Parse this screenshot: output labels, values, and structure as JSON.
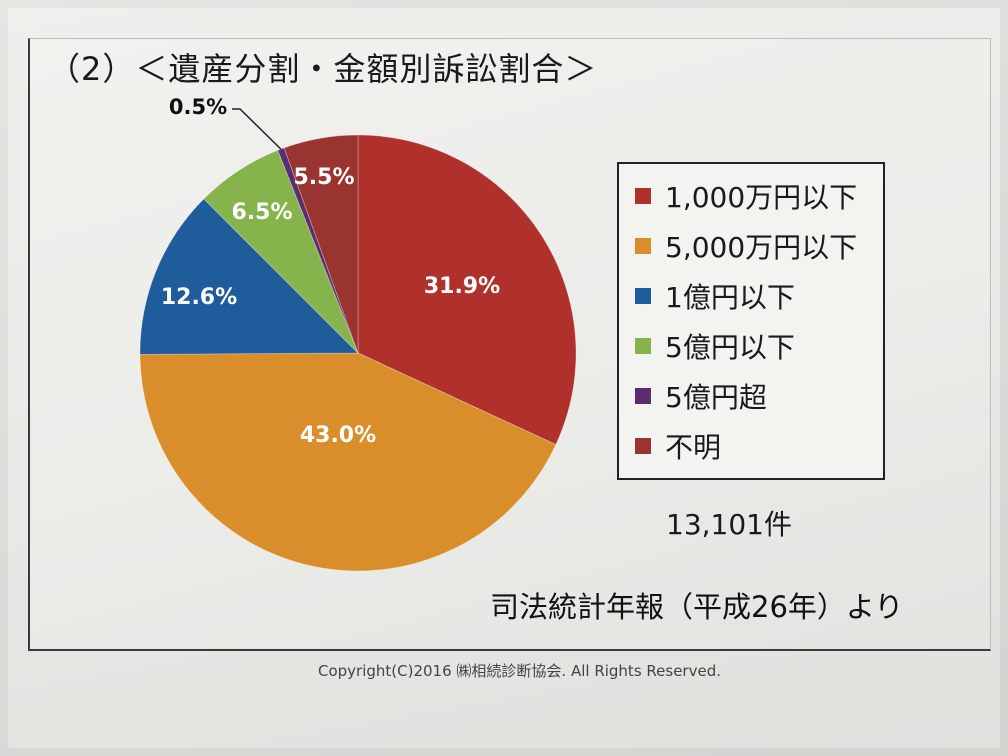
{
  "slide": {
    "title": "（2）＜遺産分割・金額別訴訟割合＞",
    "count": "13,101件",
    "source": "司法統計年報（平成26年）より",
    "copyright": "Copyright(C)2016 ㈱相続診断協会. All Rights Reserved."
  },
  "chart_data": {
    "type": "pie",
    "title": "",
    "start": "top",
    "direction": "clockwise",
    "legend_position": "right",
    "slices": [
      {
        "label": "1,000万円以下",
        "value": 31.9,
        "display": "31.9%",
        "color": "#b0312c"
      },
      {
        "label": "5,000万円以下",
        "value": 43.0,
        "display": "43.0%",
        "color": "#d98d2b"
      },
      {
        "label": "1億円以下",
        "value": 12.6,
        "display": "12.6%",
        "color": "#1f5c9c"
      },
      {
        "label": "5億円以下",
        "value": 6.5,
        "display": "6.5%",
        "color": "#86b34c"
      },
      {
        "label": "5億円超",
        "value": 0.5,
        "display": "0.5%",
        "color": "#5a2e6e"
      },
      {
        "label": "不明",
        "value": 5.5,
        "display": "5.5%",
        "color": "#9a3430"
      }
    ]
  }
}
